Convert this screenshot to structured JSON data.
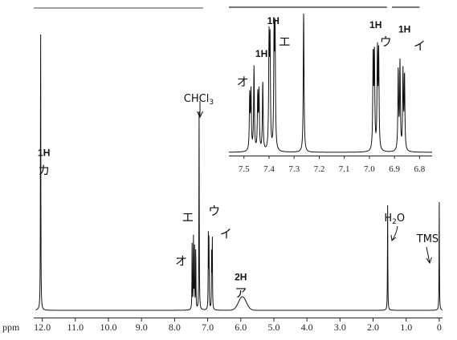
{
  "chart_data": [
    {
      "type": "line",
      "title": "",
      "xlabel": "ppm",
      "ylabel": "",
      "xlim": [
        12.2,
        -0.1
      ],
      "x_reversed": true,
      "x_ticks": [
        12.0,
        11.0,
        10.0,
        9.0,
        8.0,
        7.0,
        6.0,
        5.0,
        4.0,
        3.0,
        2.0,
        1.0,
        0
      ],
      "x_tick_labels": [
        "12.0",
        "11.0",
        "10.0",
        "9.0",
        "8.0",
        "7.0",
        "6.0",
        "5.0",
        "4.0",
        "3.0",
        "2.0",
        "1.0",
        "0"
      ],
      "peaks": [
        {
          "ppm": 12.05,
          "height": 0.99
        },
        {
          "ppm": 7.47,
          "height": 0.23
        },
        {
          "ppm": 7.43,
          "height": 0.24
        },
        {
          "ppm": 7.4,
          "height": 0.21
        },
        {
          "ppm": 7.36,
          "height": 0.22
        },
        {
          "ppm": 7.26,
          "height": 0.67
        },
        {
          "ppm": 6.98,
          "height": 0.24
        },
        {
          "ppm": 6.96,
          "height": 0.24
        },
        {
          "ppm": 6.88,
          "height": 0.22
        },
        {
          "ppm": 6.86,
          "height": 0.24
        },
        {
          "ppm": 1.56,
          "height": 0.35
        },
        {
          "ppm": 0.0,
          "height": 0.36
        }
      ],
      "broad_peaks": [
        {
          "ppm": 5.95,
          "height": 0.045,
          "width": 0.42
        }
      ],
      "annotations": [
        {
          "text": "1H",
          "ppm": 11.95,
          "level": 0.51
        },
        {
          "text": "カ",
          "ppm": 11.95,
          "level": 0.45
        },
        {
          "text": "CHCl",
          "sub": "3",
          "ppm": 7.27,
          "level": 0.69
        },
        {
          "text": "エ",
          "ppm": 7.6,
          "level": 0.295
        },
        {
          "text": "オ",
          "ppm": 7.8,
          "level": 0.15
        },
        {
          "text": "ウ",
          "ppm": 6.8,
          "level": 0.315
        },
        {
          "text": "イ",
          "ppm": 6.45,
          "level": 0.24
        },
        {
          "text": "2H",
          "ppm": 6.0,
          "level": 0.1
        },
        {
          "text": "ア",
          "ppm": 6.0,
          "level": 0.045
        },
        {
          "text": "H",
          "sub": "2",
          "tail": "O",
          "ppm": 1.35,
          "level": 0.295
        },
        {
          "text": "TMS",
          "ppm": 0.35,
          "level": 0.225
        }
      ]
    },
    {
      "type": "line",
      "title": "",
      "xlabel": "",
      "xlim": [
        7.56,
        6.75
      ],
      "x_reversed": true,
      "x_ticks": [
        7.5,
        7.4,
        7.3,
        7.2,
        7.1,
        7.0,
        6.9,
        6.8
      ],
      "x_tick_labels": [
        "7.5",
        "7.4",
        "7.3",
        "7.2",
        "7.1",
        "7.0",
        "6.9",
        "6.8"
      ],
      "peaks": [
        {
          "ppm": 7.477,
          "height": 0.38
        },
        {
          "ppm": 7.472,
          "height": 0.4
        },
        {
          "ppm": 7.46,
          "height": 0.58
        },
        {
          "ppm": 7.445,
          "height": 0.38
        },
        {
          "ppm": 7.44,
          "height": 0.4
        },
        {
          "ppm": 7.425,
          "height": 0.48
        },
        {
          "ppm": 7.4,
          "height": 0.74
        },
        {
          "ppm": 7.396,
          "height": 0.72
        },
        {
          "ppm": 7.38,
          "height": 0.76
        },
        {
          "ppm": 7.376,
          "height": 0.8
        },
        {
          "ppm": 7.262,
          "height": 0.98
        },
        {
          "ppm": 6.985,
          "height": 0.66
        },
        {
          "ppm": 6.98,
          "height": 0.66
        },
        {
          "ppm": 6.968,
          "height": 0.68
        },
        {
          "ppm": 6.963,
          "height": 0.66
        },
        {
          "ppm": 6.885,
          "height": 0.56
        },
        {
          "ppm": 6.878,
          "height": 0.6
        },
        {
          "ppm": 6.866,
          "height": 0.54
        },
        {
          "ppm": 6.86,
          "height": 0.52
        }
      ],
      "annotations": [
        {
          "text": "オ",
          "ppm": 7.505,
          "level": 0.46
        },
        {
          "text": "1H",
          "ppm": 7.43,
          "level": 0.66
        },
        {
          "text": "1H",
          "ppm": 7.383,
          "level": 0.89
        },
        {
          "text": "エ",
          "ppm": 7.338,
          "level": 0.74
        },
        {
          "text": "1H",
          "ppm": 6.975,
          "level": 0.86
        },
        {
          "text": "ウ",
          "ppm": 6.935,
          "level": 0.74
        },
        {
          "text": "1H",
          "ppm": 6.86,
          "level": 0.83
        },
        {
          "text": "イ",
          "ppm": 6.8,
          "level": 0.71
        }
      ],
      "brackets": [
        {
          "from": 7.56,
          "to": 6.93
        },
        {
          "from": 6.91,
          "to": 6.8
        }
      ]
    }
  ]
}
